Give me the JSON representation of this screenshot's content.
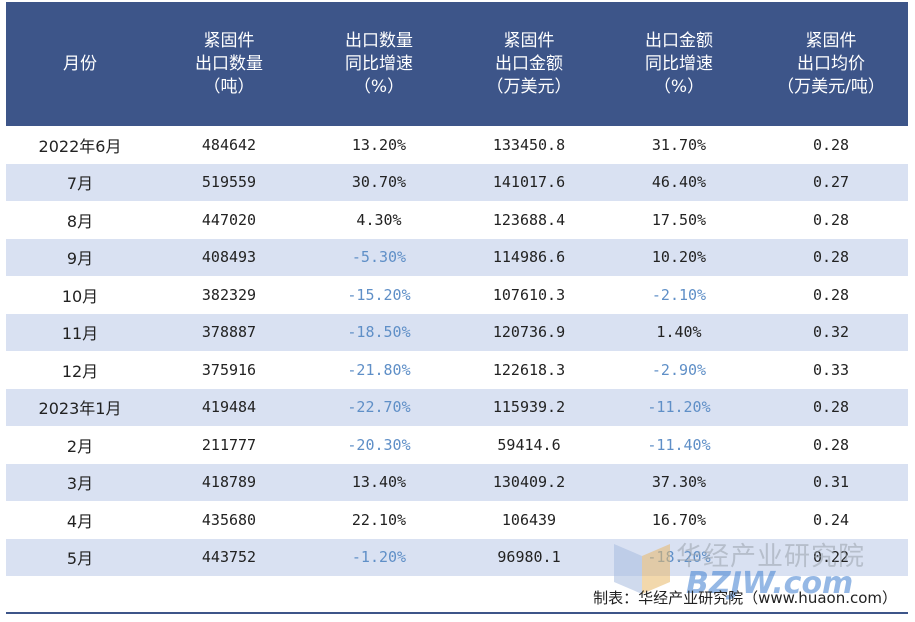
{
  "table": {
    "headers": [
      "月份",
      "紧固件\n出口数量\n（吨）",
      "出口数量\n同比增速\n（%）",
      "紧固件\n出口金额\n（万美元）",
      "出口金额\n同比增速\n（%）",
      "紧固件\n出口均价\n（万美元/吨）"
    ],
    "rows": [
      {
        "month": "2022年6月",
        "qty": "484642",
        "qty_yoy": "13.20%",
        "amount": "133450.8",
        "amount_yoy": "31.70%",
        "price": "0.28"
      },
      {
        "month": "7月",
        "qty": "519559",
        "qty_yoy": "30.70%",
        "amount": "141017.6",
        "amount_yoy": "46.40%",
        "price": "0.27"
      },
      {
        "month": "8月",
        "qty": "447020",
        "qty_yoy": "4.30%",
        "amount": "123688.4",
        "amount_yoy": "17.50%",
        "price": "0.28"
      },
      {
        "month": "9月",
        "qty": "408493",
        "qty_yoy": "-5.30%",
        "amount": "114986.6",
        "amount_yoy": "10.20%",
        "price": "0.28"
      },
      {
        "month": "10月",
        "qty": "382329",
        "qty_yoy": "-15.20%",
        "amount": "107610.3",
        "amount_yoy": "-2.10%",
        "price": "0.28"
      },
      {
        "month": "11月",
        "qty": "378887",
        "qty_yoy": "-18.50%",
        "amount": "120736.9",
        "amount_yoy": "1.40%",
        "price": "0.32"
      },
      {
        "month": "12月",
        "qty": "375916",
        "qty_yoy": "-21.80%",
        "amount": "122618.3",
        "amount_yoy": "-2.90%",
        "price": "0.33"
      },
      {
        "month": "2023年1月",
        "qty": "419484",
        "qty_yoy": "-22.70%",
        "amount": "115939.2",
        "amount_yoy": "-11.20%",
        "price": "0.28"
      },
      {
        "month": "2月",
        "qty": "211777",
        "qty_yoy": "-20.30%",
        "amount": "59414.6",
        "amount_yoy": "-11.40%",
        "price": "0.28"
      },
      {
        "month": "3月",
        "qty": "418789",
        "qty_yoy": "13.40%",
        "amount": "130409.2",
        "amount_yoy": "37.30%",
        "price": "0.31"
      },
      {
        "month": "4月",
        "qty": "435680",
        "qty_yoy": "22.10%",
        "amount": "106439",
        "amount_yoy": "16.70%",
        "price": "0.24"
      },
      {
        "month": "5月",
        "qty": "443752",
        "qty_yoy": "-1.20%",
        "amount": "96980.1",
        "amount_yoy": "-18.20%",
        "price": "0.22"
      }
    ]
  },
  "source": "制表：华经产业研究院（www.huaon.com）",
  "watermark": {
    "cn": "华经产业研究院",
    "en": "BZJW.com"
  },
  "colors": {
    "header_bg": "#3d5589",
    "stripe": "#d9e1f2",
    "negative": "#5f8fc7"
  }
}
